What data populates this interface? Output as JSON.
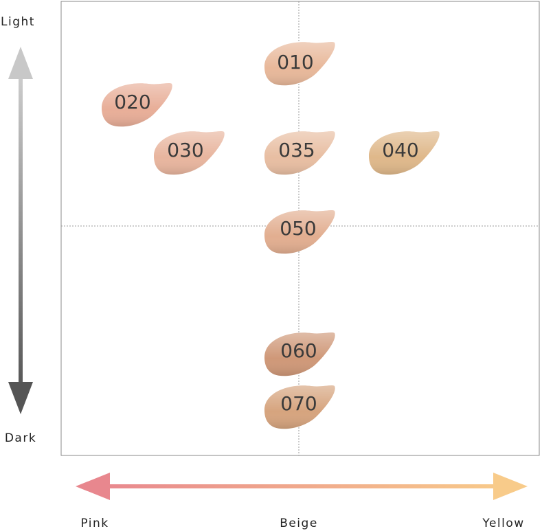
{
  "axes": {
    "top": "Light",
    "bottom": "Dark",
    "left": "Pink",
    "center": "Beige",
    "right": "Yellow"
  },
  "nodes": [
    {
      "label": "010"
    },
    {
      "label": "020"
    },
    {
      "label": "030"
    },
    {
      "label": "035"
    },
    {
      "label": "040"
    },
    {
      "label": "050"
    },
    {
      "label": "060"
    },
    {
      "label": "070"
    }
  ]
}
